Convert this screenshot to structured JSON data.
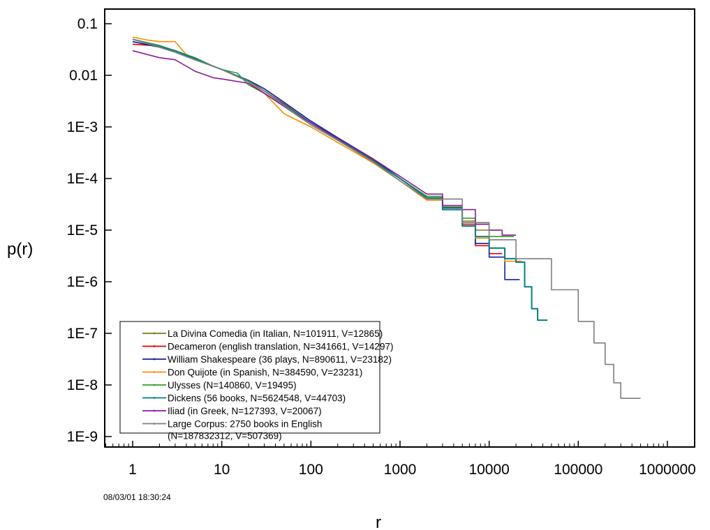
{
  "chart_data": {
    "type": "line",
    "xscale": "log",
    "yscale": "log",
    "xlabel": "r",
    "ylabel": "p(r)",
    "xlim": [
      0.4,
      1000000
    ],
    "ylim": [
      1e-09,
      0.15
    ],
    "x_ticks": [
      1,
      10,
      100,
      1000,
      10000,
      100000,
      1000000
    ],
    "x_tick_labels": [
      "1",
      "10",
      "100",
      "1000",
      "10000",
      "100000",
      "1000000"
    ],
    "y_ticks": [
      1e-09,
      1e-08,
      1e-07,
      1e-06,
      1e-05,
      0.0001,
      0.001,
      0.01,
      0.1
    ],
    "y_tick_labels": [
      "1E-9",
      "1E-8",
      "1E-7",
      "1E-6",
      "1E-5",
      "1E-4",
      "1E-3",
      "0.01",
      "0.1"
    ],
    "grid": false,
    "legend_position": "bottom-left",
    "timestamp": "08/03/01 18:30:24",
    "series": [
      {
        "name": "La Divina Comedia (in Italian, N=101911, V=12865)",
        "color": "#7a7a1a",
        "points": [
          [
            1,
            0.045
          ],
          [
            2,
            0.035
          ],
          [
            3,
            0.03
          ],
          [
            5,
            0.022
          ],
          [
            8,
            0.015
          ],
          [
            10,
            0.013
          ],
          [
            20,
            0.0075
          ],
          [
            30,
            0.0045
          ],
          [
            50,
            0.0025
          ],
          [
            100,
            0.0011
          ],
          [
            200,
            0.00055
          ],
          [
            500,
            0.00022
          ],
          [
            1000,
            0.0001
          ],
          [
            2000,
            4.5e-05
          ],
          [
            3000,
            3e-05
          ],
          [
            5000,
            1.5e-05
          ],
          [
            7000,
            1e-05
          ],
          [
            10000,
            1e-05
          ],
          [
            13000,
            1e-05
          ]
        ]
      },
      {
        "name": "Decameron (english translation, N=341661, V=14297)",
        "color": "#e60000",
        "points": [
          [
            1,
            0.04
          ],
          [
            2,
            0.037
          ],
          [
            3,
            0.03
          ],
          [
            5,
            0.021
          ],
          [
            8,
            0.015
          ],
          [
            10,
            0.013
          ],
          [
            20,
            0.0075
          ],
          [
            30,
            0.005
          ],
          [
            50,
            0.0028
          ],
          [
            100,
            0.0012
          ],
          [
            200,
            0.0006
          ],
          [
            500,
            0.00023
          ],
          [
            1000,
            0.0001
          ],
          [
            2000,
            4.5e-05
          ],
          [
            3000,
            2.8e-05
          ],
          [
            5000,
            1.3e-05
          ],
          [
            7000,
            5e-06
          ],
          [
            10000,
            3.5e-06
          ],
          [
            14000,
            3.5e-06
          ]
        ]
      },
      {
        "name": "William Shakespeare (36 plays, N=890611, V=23182)",
        "color": "#1020a0",
        "points": [
          [
            1,
            0.045
          ],
          [
            2,
            0.035
          ],
          [
            3,
            0.028
          ],
          [
            5,
            0.02
          ],
          [
            8,
            0.015
          ],
          [
            10,
            0.013
          ],
          [
            20,
            0.008
          ],
          [
            30,
            0.0055
          ],
          [
            50,
            0.003
          ],
          [
            100,
            0.0013
          ],
          [
            200,
            0.00062
          ],
          [
            500,
            0.00024
          ],
          [
            1000,
            0.0001
          ],
          [
            2000,
            4.2e-05
          ],
          [
            3000,
            2.7e-05
          ],
          [
            5000,
            1.2e-05
          ],
          [
            7000,
            5.5e-06
          ],
          [
            10000,
            3e-06
          ],
          [
            15000,
            1.1e-06
          ],
          [
            22000,
            1.1e-06
          ]
        ]
      },
      {
        "name": "Don Quijote (in Spanish, N=384590, V=23231)",
        "color": "#ff8c00",
        "points": [
          [
            1,
            0.055
          ],
          [
            1.5,
            0.048
          ],
          [
            2,
            0.045
          ],
          [
            3,
            0.045
          ],
          [
            4,
            0.025
          ],
          [
            6,
            0.018
          ],
          [
            10,
            0.013
          ],
          [
            20,
            0.0075
          ],
          [
            30,
            0.0045
          ],
          [
            50,
            0.0018
          ],
          [
            100,
            0.001
          ],
          [
            200,
            0.0005
          ],
          [
            500,
            0.0002
          ],
          [
            1000,
            9e-05
          ],
          [
            2000,
            3.8e-05
          ],
          [
            3000,
            2.5e-05
          ],
          [
            5000,
            1.2e-05
          ],
          [
            7000,
            7e-06
          ],
          [
            10000,
            4.5e-06
          ],
          [
            15000,
            2.5e-06
          ],
          [
            23000,
            2.5e-06
          ]
        ]
      },
      {
        "name": "Ulysses (N=140860, V=19495)",
        "color": "#2e9e2e",
        "points": [
          [
            1,
            0.05
          ],
          [
            2,
            0.038
          ],
          [
            3,
            0.03
          ],
          [
            5,
            0.022
          ],
          [
            8,
            0.015
          ],
          [
            10,
            0.013
          ],
          [
            15,
            0.011
          ],
          [
            20,
            0.0065
          ],
          [
            30,
            0.0045
          ],
          [
            50,
            0.0025
          ],
          [
            100,
            0.0011
          ],
          [
            200,
            0.00055
          ],
          [
            500,
            0.00021
          ],
          [
            1000,
            0.0001
          ],
          [
            2000,
            4.5e-05
          ],
          [
            3000,
            2.8e-05
          ],
          [
            5000,
            1.7e-05
          ],
          [
            7000,
            1.3e-05
          ],
          [
            10000,
            7.5e-06
          ],
          [
            19000,
            7.5e-06
          ]
        ]
      },
      {
        "name": "Dickens (56 books, N=5624548, V=44703)",
        "color": "#008080",
        "points": [
          [
            1,
            0.05
          ],
          [
            2,
            0.036
          ],
          [
            3,
            0.03
          ],
          [
            5,
            0.021
          ],
          [
            8,
            0.015
          ],
          [
            10,
            0.013
          ],
          [
            20,
            0.0078
          ],
          [
            30,
            0.005
          ],
          [
            50,
            0.0027
          ],
          [
            100,
            0.0012
          ],
          [
            200,
            0.00058
          ],
          [
            500,
            0.00022
          ],
          [
            1000,
            0.0001
          ],
          [
            2000,
            4.2e-05
          ],
          [
            3000,
            2.5e-05
          ],
          [
            5000,
            1.2e-05
          ],
          [
            7000,
            7.5e-06
          ],
          [
            10000,
            4.5e-06
          ],
          [
            15000,
            2.8e-06
          ],
          [
            20000,
            2.4e-06
          ],
          [
            25000,
            8e-07
          ],
          [
            30000,
            3e-07
          ],
          [
            35000,
            1.8e-07
          ],
          [
            45000,
            1.8e-07
          ]
        ]
      },
      {
        "name": "Iliad (in Greek, N=127393, V=20067)",
        "color": "#8a1a9a",
        "points": [
          [
            1,
            0.03
          ],
          [
            2,
            0.022
          ],
          [
            3,
            0.02
          ],
          [
            5,
            0.012
          ],
          [
            8,
            0.009
          ],
          [
            10,
            0.0085
          ],
          [
            20,
            0.007
          ],
          [
            30,
            0.0045
          ],
          [
            50,
            0.0025
          ],
          [
            100,
            0.0012
          ],
          [
            200,
            0.0006
          ],
          [
            500,
            0.00024
          ],
          [
            1000,
            0.00011
          ],
          [
            2000,
            5e-05
          ],
          [
            3000,
            3e-05
          ],
          [
            5000,
            2.5e-05
          ],
          [
            7000,
            1.3e-05
          ],
          [
            10000,
            1e-05
          ],
          [
            14000,
            8e-06
          ],
          [
            20000,
            8e-06
          ]
        ]
      },
      {
        "name": "Large Corpus: 2750 books in English\n  (N=187832312, V=507369)",
        "color": "#7f7f7f",
        "points": [
          [
            1,
            0.05
          ],
          [
            2,
            0.035
          ],
          [
            3,
            0.028
          ],
          [
            5,
            0.02
          ],
          [
            8,
            0.015
          ],
          [
            10,
            0.013
          ],
          [
            20,
            0.0075
          ],
          [
            30,
            0.005
          ],
          [
            50,
            0.0026
          ],
          [
            100,
            0.0011
          ],
          [
            200,
            0.00055
          ],
          [
            500,
            0.00021
          ],
          [
            1000,
            9e-05
          ],
          [
            2000,
            4e-05
          ],
          [
            5000,
            1.4e-05
          ],
          [
            10000,
            6.5e-06
          ],
          [
            20000,
            2.8e-06
          ],
          [
            50000,
            7e-07
          ],
          [
            100000,
            1.7e-07
          ],
          [
            150000,
            6.5e-08
          ],
          [
            200000,
            2.5e-08
          ],
          [
            250000,
            1.1e-08
          ],
          [
            300000,
            5.5e-09
          ],
          [
            500000,
            5.5e-09
          ]
        ]
      }
    ]
  }
}
